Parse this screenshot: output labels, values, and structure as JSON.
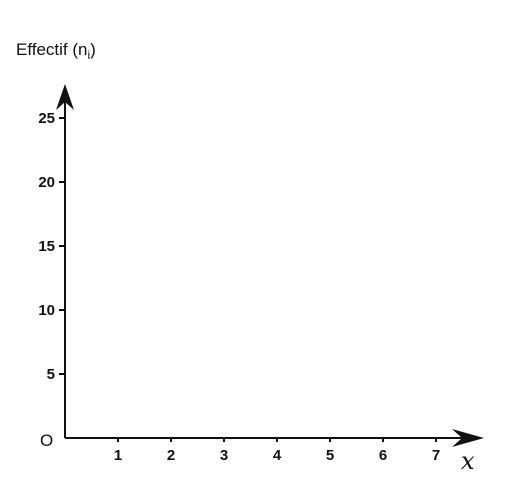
{
  "chart_data": {
    "type": "bar",
    "title": "",
    "ylabel": {
      "main": "Effectif (n",
      "subscript": "i",
      "close": ")"
    },
    "xlabel": "x",
    "origin_label": "O",
    "x_ticks": [
      1,
      2,
      3,
      4,
      5,
      6,
      7
    ],
    "y_ticks": [
      5,
      10,
      15,
      20,
      25
    ],
    "xlim": [
      0,
      7.8
    ],
    "ylim": [
      0,
      30
    ],
    "categories": [],
    "values": [],
    "grid": false,
    "legend": "none"
  }
}
